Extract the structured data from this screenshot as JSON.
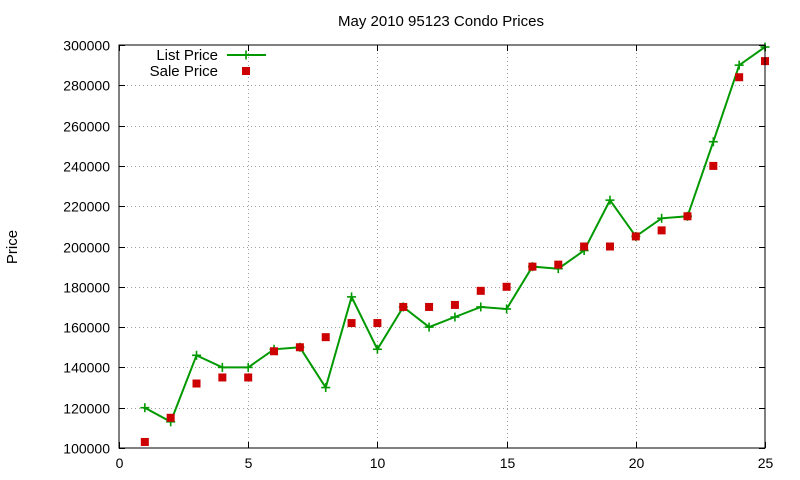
{
  "chart_data": {
    "type": "line",
    "title": "May 2010 95123 Condo Prices",
    "xlabel": "",
    "ylabel": "Price",
    "xlim": [
      0,
      25
    ],
    "ylim": [
      100000,
      300000
    ],
    "xticks": [
      0,
      5,
      10,
      15,
      20,
      25
    ],
    "yticks": [
      100000,
      120000,
      140000,
      160000,
      180000,
      200000,
      220000,
      240000,
      260000,
      280000,
      300000
    ],
    "grid": true,
    "legend_position": "top-left",
    "series": [
      {
        "name": "List Price",
        "style": "line-with-plus-markers",
        "color": "#009900",
        "x": [
          1,
          2,
          3,
          4,
          5,
          6,
          7,
          8,
          9,
          10,
          11,
          12,
          13,
          14,
          15,
          16,
          17,
          18,
          19,
          20,
          21,
          22,
          23,
          24,
          25
        ],
        "y": [
          120000,
          113000,
          146000,
          140000,
          140000,
          149000,
          150000,
          130000,
          175000,
          149000,
          170000,
          160000,
          165000,
          170000,
          169000,
          190000,
          189000,
          198000,
          223000,
          205000,
          214000,
          215000,
          252000,
          290000,
          299000
        ]
      },
      {
        "name": "Sale Price",
        "style": "square-points",
        "color": "#cc0000",
        "x": [
          1,
          2,
          3,
          4,
          5,
          6,
          7,
          8,
          9,
          10,
          11,
          12,
          13,
          14,
          15,
          16,
          17,
          18,
          19,
          20,
          21,
          22,
          23,
          24,
          25
        ],
        "y": [
          103000,
          115000,
          132000,
          135000,
          135000,
          148000,
          150000,
          155000,
          162000,
          162000,
          170000,
          170000,
          171000,
          178000,
          180000,
          190000,
          191000,
          200000,
          200000,
          205000,
          208000,
          215000,
          240000,
          284000,
          292000
        ]
      }
    ]
  }
}
